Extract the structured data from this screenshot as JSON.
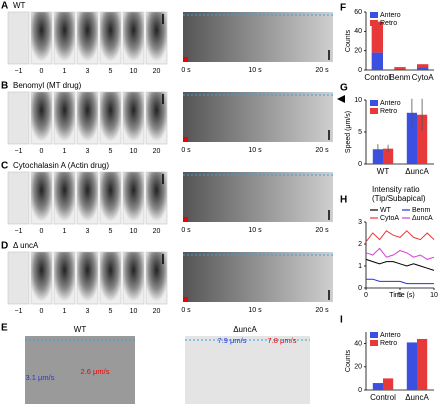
{
  "figure": {
    "rows": [
      {
        "letter": "A",
        "label": "WT",
        "frames": [
          "−1",
          "0",
          "1",
          "3",
          "5",
          "10",
          "20"
        ],
        "kymo_ticks": [
          "0 s",
          "10 s",
          "20 s"
        ]
      },
      {
        "letter": "B",
        "label": "Benomyl (MT drug)",
        "frames": [
          "−1",
          "0",
          "1",
          "3",
          "5",
          "10",
          "20"
        ],
        "kymo_ticks": [
          "0 s",
          "10 s",
          "20 s"
        ]
      },
      {
        "letter": "C",
        "label": "Cytochalasin A (Actin drug)",
        "frames": [
          "−1",
          "0",
          "1",
          "3",
          "5",
          "10",
          "20"
        ],
        "kymo_ticks": [
          "0 s",
          "10 s",
          "20 s"
        ]
      },
      {
        "letter": "D",
        "label": "Δ uncA",
        "frames": [
          "−1",
          "0",
          "1",
          "3",
          "5",
          "10",
          "20"
        ],
        "kymo_ticks": [
          "0 s",
          "10 s",
          "20 s"
        ]
      }
    ],
    "panel_e": {
      "letter": "E",
      "left_label": "WT",
      "right_label": "ΔuncA",
      "speeds": [
        "3.1 μm/s",
        "2.6 μm/s",
        "7.9 μm/s",
        "7.8 μm/s"
      ]
    }
  },
  "chart_data": [
    {
      "type": "bar",
      "panel": "F",
      "stacked": true,
      "ylabel": "Counts",
      "categories": [
        "Control",
        "Benm",
        "CytoA"
      ],
      "series": [
        {
          "name": "Antero",
          "color": "#3b4fe0",
          "values": [
            18,
            1,
            3
          ]
        },
        {
          "name": "Retro",
          "color": "#e8393a",
          "values": [
            32,
            2,
            3
          ]
        }
      ],
      "ylim": [
        0,
        60
      ],
      "yticks": [
        0,
        20,
        40,
        60
      ]
    },
    {
      "type": "bar",
      "panel": "G",
      "stacked": false,
      "ylabel": "Speed (μm/s)",
      "categories": [
        "WT",
        "ΔuncA"
      ],
      "series": [
        {
          "name": "Antero",
          "color": "#3b4fe0",
          "values": [
            2.3,
            8.0
          ],
          "errors": [
            0.8,
            2.2
          ]
        },
        {
          "name": "Retro",
          "color": "#e8393a",
          "values": [
            2.4,
            7.7
          ],
          "errors": [
            0.6,
            2.5
          ]
        }
      ],
      "ylim": [
        0,
        10
      ],
      "yticks": [
        0,
        5,
        10
      ]
    },
    {
      "type": "line",
      "panel": "H",
      "title": "Intensity ratio",
      "subtitle": "(Tip/Subapical)",
      "xlabel": "Time (s)",
      "x": [
        0,
        1,
        2,
        3,
        4,
        5,
        6,
        7,
        8,
        9,
        10
      ],
      "series": [
        {
          "name": "WT",
          "color": "#000000",
          "values": [
            1.3,
            1.2,
            1.1,
            1.2,
            1.2,
            1.1,
            1.0,
            1.1,
            1.0,
            0.9,
            0.8
          ]
        },
        {
          "name": "Benm",
          "color": "#2233dd",
          "values": [
            0.4,
            0.4,
            0.3,
            0.3,
            0.3,
            0.3,
            0.2,
            0.2,
            0.2,
            0.2,
            0.2
          ]
        },
        {
          "name": "CytoA",
          "color": "#e8393a",
          "values": [
            2.1,
            2.5,
            2.2,
            2.6,
            2.4,
            2.3,
            2.6,
            2.3,
            2.2,
            2.5,
            2.2
          ]
        },
        {
          "name": "ΔuncA",
          "color": "#d63fd6",
          "values": [
            1.6,
            1.5,
            1.8,
            1.4,
            1.5,
            1.7,
            1.6,
            1.4,
            1.5,
            1.3,
            1.4
          ]
        }
      ],
      "xlim": [
        0,
        10
      ],
      "xticks": [
        0,
        5,
        10
      ],
      "ylim": [
        0,
        3
      ],
      "yticks": [
        0,
        1,
        2,
        3
      ]
    },
    {
      "type": "bar",
      "panel": "I",
      "stacked": false,
      "ylabel": "Counts",
      "categories": [
        "Control",
        "ΔuncA"
      ],
      "series": [
        {
          "name": "Antero",
          "color": "#3b4fe0",
          "values": [
            6,
            41
          ]
        },
        {
          "name": "Retro",
          "color": "#e8393a",
          "values": [
            10,
            44
          ]
        }
      ],
      "ylim": [
        0,
        50
      ],
      "yticks": [
        0,
        20,
        40
      ]
    }
  ]
}
